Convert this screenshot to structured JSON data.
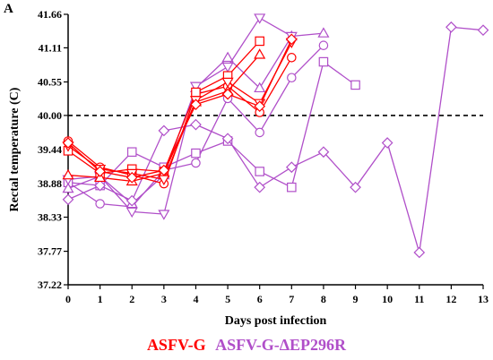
{
  "panel_label": "A",
  "chart_data": {
    "type": "line",
    "xlabel": "Days post infection",
    "ylabel": "Rectal temperature (C)",
    "xlim": [
      0,
      13
    ],
    "ylim": [
      37.22,
      41.66
    ],
    "x_ticks": [
      0,
      1,
      2,
      3,
      4,
      5,
      6,
      7,
      8,
      9,
      10,
      11,
      12,
      13
    ],
    "y_ticks": [
      "37.22",
      "37.77",
      "38.33",
      "38.88",
      "39.44",
      "40.00",
      "40.55",
      "41.11",
      "41.66"
    ],
    "threshold": 40.0,
    "legend": [
      {
        "name": "ASFV-G",
        "color": "#ff0000"
      },
      {
        "name": "ASFV-G-ΔEP296R",
        "color": "#b04fc9"
      }
    ],
    "series": [
      {
        "group": "ASFV-G",
        "color": "#ff0000",
        "marker": "circle",
        "x": [
          0,
          1,
          2,
          3,
          4,
          5,
          6,
          7
        ],
        "y": [
          39.58,
          39.15,
          39.02,
          38.88,
          40.35,
          40.48,
          40.05,
          40.95
        ]
      },
      {
        "group": "ASFV-G",
        "color": "#ff0000",
        "marker": "square",
        "x": [
          0,
          1,
          2,
          3,
          4,
          5,
          6
        ],
        "y": [
          39.42,
          39.05,
          39.12,
          39.08,
          40.38,
          40.65,
          41.22
        ]
      },
      {
        "group": "ASFV-G",
        "color": "#ff0000",
        "marker": "triangle-up",
        "x": [
          0,
          1,
          2,
          3,
          4,
          5,
          6
        ],
        "y": [
          39.02,
          38.98,
          38.92,
          39.05,
          40.22,
          40.4,
          41.0
        ]
      },
      {
        "group": "ASFV-G",
        "color": "#ff0000",
        "marker": "triangle-down",
        "x": [
          0,
          1,
          2,
          3,
          4,
          5,
          6,
          7
        ],
        "y": [
          39.5,
          39.12,
          39.05,
          38.95,
          40.25,
          40.55,
          40.2,
          41.2
        ]
      },
      {
        "group": "ASFV-G",
        "color": "#ff0000",
        "marker": "diamond",
        "x": [
          0,
          1,
          2,
          3,
          4,
          5,
          6,
          7
        ],
        "y": [
          39.55,
          39.08,
          38.98,
          39.1,
          40.18,
          40.35,
          40.15,
          41.25
        ]
      },
      {
        "group": "ASFV-G-ΔEP296R",
        "color": "#b04fc9",
        "marker": "circle",
        "x": [
          0,
          1,
          2,
          3,
          4,
          5,
          6,
          7,
          8
        ],
        "y": [
          38.9,
          38.55,
          38.5,
          39.1,
          39.22,
          40.28,
          39.72,
          40.62,
          41.15
        ]
      },
      {
        "group": "ASFV-G-ΔEP296R",
        "color": "#b04fc9",
        "marker": "square",
        "x": [
          0,
          1,
          2,
          3,
          4,
          5,
          6,
          7,
          8,
          9
        ],
        "y": [
          38.9,
          38.85,
          39.4,
          39.15,
          39.38,
          39.58,
          39.08,
          38.82,
          40.88,
          40.5
        ]
      },
      {
        "group": "ASFV-G-ΔEP296R",
        "color": "#b04fc9",
        "marker": "triangle-up",
        "x": [
          0,
          1,
          2,
          3,
          4,
          5,
          6,
          7,
          8
        ],
        "y": [
          38.8,
          39.0,
          38.55,
          39.02,
          40.45,
          40.95,
          40.45,
          41.3,
          41.35
        ]
      },
      {
        "group": "ASFV-G-ΔEP296R",
        "color": "#b04fc9",
        "marker": "triangle-down",
        "x": [
          0,
          1,
          2,
          3,
          4,
          5,
          6,
          7
        ],
        "y": [
          38.95,
          39.0,
          38.42,
          38.38,
          40.48,
          40.8,
          41.6,
          41.3
        ]
      },
      {
        "group": "ASFV-G-ΔEP296R",
        "color": "#b04fc9",
        "marker": "diamond",
        "x": [
          0,
          1,
          2,
          3,
          4,
          5,
          6,
          7,
          8,
          9,
          10,
          11,
          12,
          13
        ],
        "y": [
          38.62,
          38.85,
          38.6,
          39.75,
          39.85,
          39.62,
          38.82,
          39.15,
          39.4,
          38.82,
          39.55,
          37.75,
          41.45,
          41.4
        ]
      }
    ]
  }
}
